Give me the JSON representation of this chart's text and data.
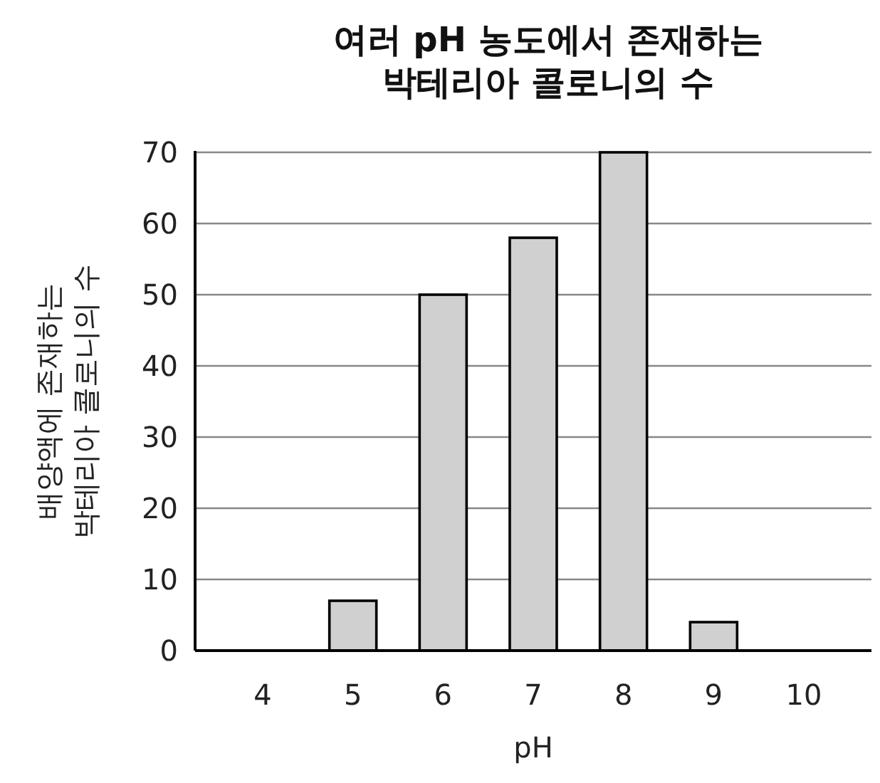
{
  "chart_data": {
    "type": "bar",
    "title": "여러 pH 농도에서 존재하는\n박테리아 콜로니의 수",
    "xlabel": "pH",
    "ylabel": "배양액에 존재하는\n박테리아 콜로니의 수",
    "categories": [
      "4",
      "5",
      "6",
      "7",
      "8",
      "9",
      "10"
    ],
    "values": [
      0,
      7,
      50,
      58,
      70,
      4,
      0
    ],
    "color": "#d0d0d0",
    "ylim": [
      0,
      70
    ],
    "yticks": [
      0,
      10,
      20,
      30,
      40,
      50,
      60,
      70
    ],
    "grid": "y"
  }
}
